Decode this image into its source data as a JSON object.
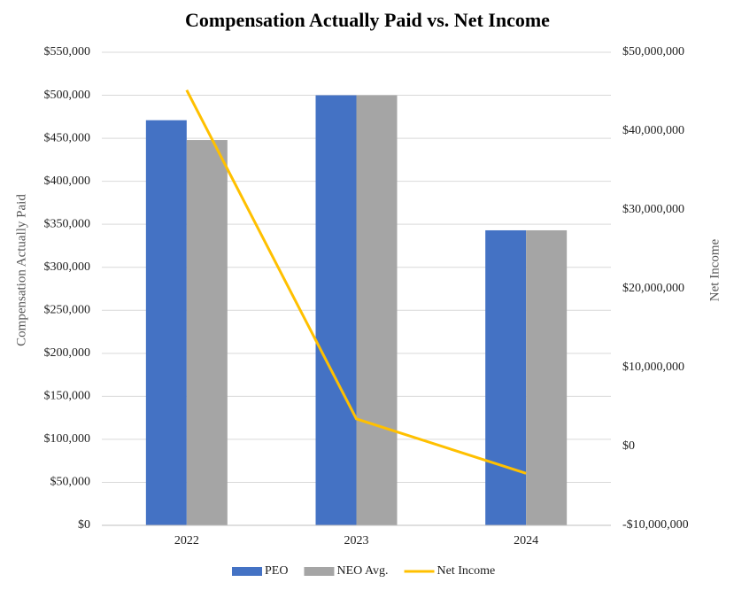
{
  "chart_data": {
    "type": "bar",
    "title": "Compensation Actually Paid vs. Net Income",
    "ylabel": "Compensation Actually Paid",
    "y2label": "Net Income",
    "categories": [
      "2022",
      "2023",
      "2024"
    ],
    "series": [
      {
        "name": "PEO",
        "type": "bar",
        "color": "#4472c4",
        "values": [
          471000,
          500000,
          343000
        ]
      },
      {
        "name": "NEO Avg.",
        "type": "bar",
        "color": "#a5a5a5",
        "values": [
          448000,
          500000,
          343000
        ]
      },
      {
        "name": "Net Income",
        "type": "line",
        "axis": "y2",
        "color": "#ffc000",
        "values": [
          45200000,
          3500000,
          -3400000
        ]
      }
    ],
    "ylim": [
      0,
      550000
    ],
    "yticks": [
      {
        "value": 0,
        "label": "$0"
      },
      {
        "value": 50000,
        "label": "$50,000"
      },
      {
        "value": 100000,
        "label": "$100,000"
      },
      {
        "value": 150000,
        "label": "$150,000"
      },
      {
        "value": 200000,
        "label": "$200,000"
      },
      {
        "value": 250000,
        "label": "$250,000"
      },
      {
        "value": 300000,
        "label": "$300,000"
      },
      {
        "value": 350000,
        "label": "$350,000"
      },
      {
        "value": 400000,
        "label": "$400,000"
      },
      {
        "value": 450000,
        "label": "$450,000"
      },
      {
        "value": 500000,
        "label": "$500,000"
      },
      {
        "value": 550000,
        "label": "$550,000"
      }
    ],
    "y2lim": [
      -10000000,
      50000000
    ],
    "y2ticks": [
      {
        "value": -10000000,
        "label": "-$10,000,000"
      },
      {
        "value": 0,
        "label": "$0"
      },
      {
        "value": 10000000,
        "label": "$10,000,000"
      },
      {
        "value": 20000000,
        "label": "$20,000,000"
      },
      {
        "value": 30000000,
        "label": "$30,000,000"
      },
      {
        "value": 40000000,
        "label": "$40,000,000"
      },
      {
        "value": 50000000,
        "label": "$50,000,000"
      }
    ],
    "grid": true,
    "legend": "bottom"
  }
}
